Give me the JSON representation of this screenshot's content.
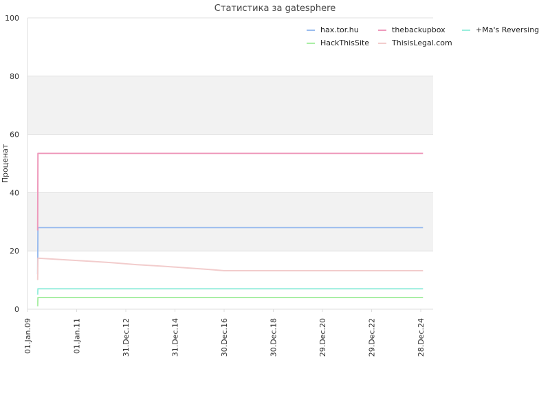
{
  "chart_data": {
    "type": "line",
    "title": "Статистика за gatesphere",
    "xlabel": "",
    "ylabel": "Проценат",
    "ylim": [
      0,
      100
    ],
    "y_ticks": [
      0,
      20,
      40,
      60,
      80,
      100
    ],
    "x_tick_labels": [
      "01.Jan.09",
      "01.Jan.11",
      "31.Dec.12",
      "31.Dec.14",
      "30.Dec.16",
      "30.Dec.18",
      "29.Dec.20",
      "29.Dec.22",
      "28.Dec.24"
    ],
    "x_range": [
      "2009-01-01",
      "2025-06-30"
    ],
    "grid": "horizontal, alternating bands",
    "legend_position": "top-right",
    "series": [
      {
        "name": "hax.tor.hu",
        "color": "#99bbee",
        "points": [
          [
            "2009-06-01",
            12
          ],
          [
            "2009-06-05",
            28
          ],
          [
            "2025-01-31",
            28
          ]
        ]
      },
      {
        "name": "thebackupbox",
        "color": "#ee99bb",
        "points": [
          [
            "2009-06-01",
            27
          ],
          [
            "2009-06-05",
            53.5
          ],
          [
            "2025-01-31",
            53.5
          ]
        ]
      },
      {
        "name": "+Ma's Reversing",
        "color": "#99eedd",
        "points": [
          [
            "2009-06-01",
            5
          ],
          [
            "2009-06-05",
            7
          ],
          [
            "2025-01-31",
            7
          ]
        ]
      },
      {
        "name": "HackThisSite",
        "color": "#aaeea5",
        "points": [
          [
            "2009-06-01",
            1
          ],
          [
            "2009-06-05",
            4
          ],
          [
            "2025-01-31",
            4
          ]
        ]
      },
      {
        "name": "ThisisLegal.com",
        "color": "#f2cccc",
        "points": [
          [
            "2009-06-01",
            10
          ],
          [
            "2009-06-05",
            17.5
          ],
          [
            "2010-06-01",
            17
          ],
          [
            "2011-06-01",
            16.5
          ],
          [
            "2012-06-01",
            16
          ],
          [
            "2013-06-01",
            15.3
          ],
          [
            "2014-06-01",
            14.8
          ],
          [
            "2015-06-01",
            14.2
          ],
          [
            "2016-06-01",
            13.6
          ],
          [
            "2017-01-01",
            13.2
          ],
          [
            "2025-01-31",
            13.2
          ]
        ]
      }
    ]
  }
}
